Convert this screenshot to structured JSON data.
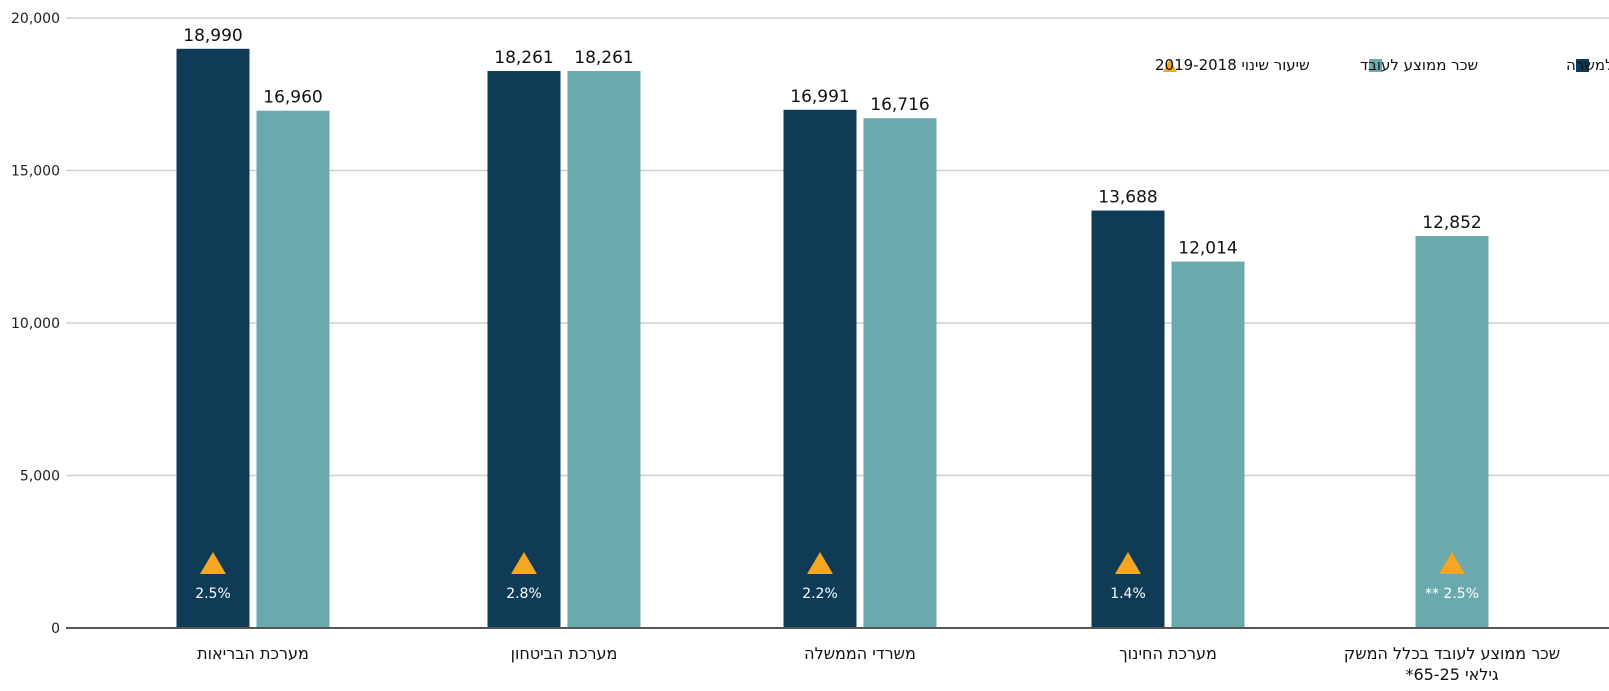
{
  "chart_data": {
    "type": "bar",
    "ylim": [
      0,
      20000
    ],
    "yticks": [
      0,
      5000,
      10000,
      15000,
      20000
    ],
    "ytick_labels": [
      "0",
      "5,000",
      "10,000",
      "15,000",
      "20,000"
    ],
    "grid": true,
    "legend_placement": "top-right",
    "categories": [
      {
        "label": "שכר ממוצע לעובד בכלל המשק",
        "label2": "גילאי 65-25*"
      },
      {
        "label": "מערכת החינוך",
        "label2": ""
      },
      {
        "label": "משרדי הממשלה",
        "label2": ""
      },
      {
        "label": "מערכת הביטחון",
        "label2": ""
      },
      {
        "label": "מערכת הבריאות",
        "label2": ""
      }
    ],
    "series": [
      {
        "name": "ממוצע למשרה",
        "color": "#0f3b57",
        "values": [
          null,
          13688,
          16991,
          18261,
          18990
        ],
        "labels": [
          "",
          "13,688",
          "16,991",
          "18,261",
          "18,990"
        ]
      },
      {
        "name": "שכר ממוצע לעובד",
        "color": "#6aaaad",
        "values": [
          12852,
          12014,
          16716,
          18261,
          16960
        ],
        "labels": [
          "12,852",
          "12,014",
          "16,716",
          "18,261",
          "16,960"
        ]
      }
    ],
    "change": {
      "name": "שיעור שינוי 2019-2018",
      "color": "#f5a623",
      "values": [
        2.5,
        1.4,
        2.2,
        2.8,
        2.5
      ],
      "labels": [
        "** 2.5%",
        "1.4%",
        "2.2%",
        "2.8%",
        "2.5%"
      ]
    }
  }
}
